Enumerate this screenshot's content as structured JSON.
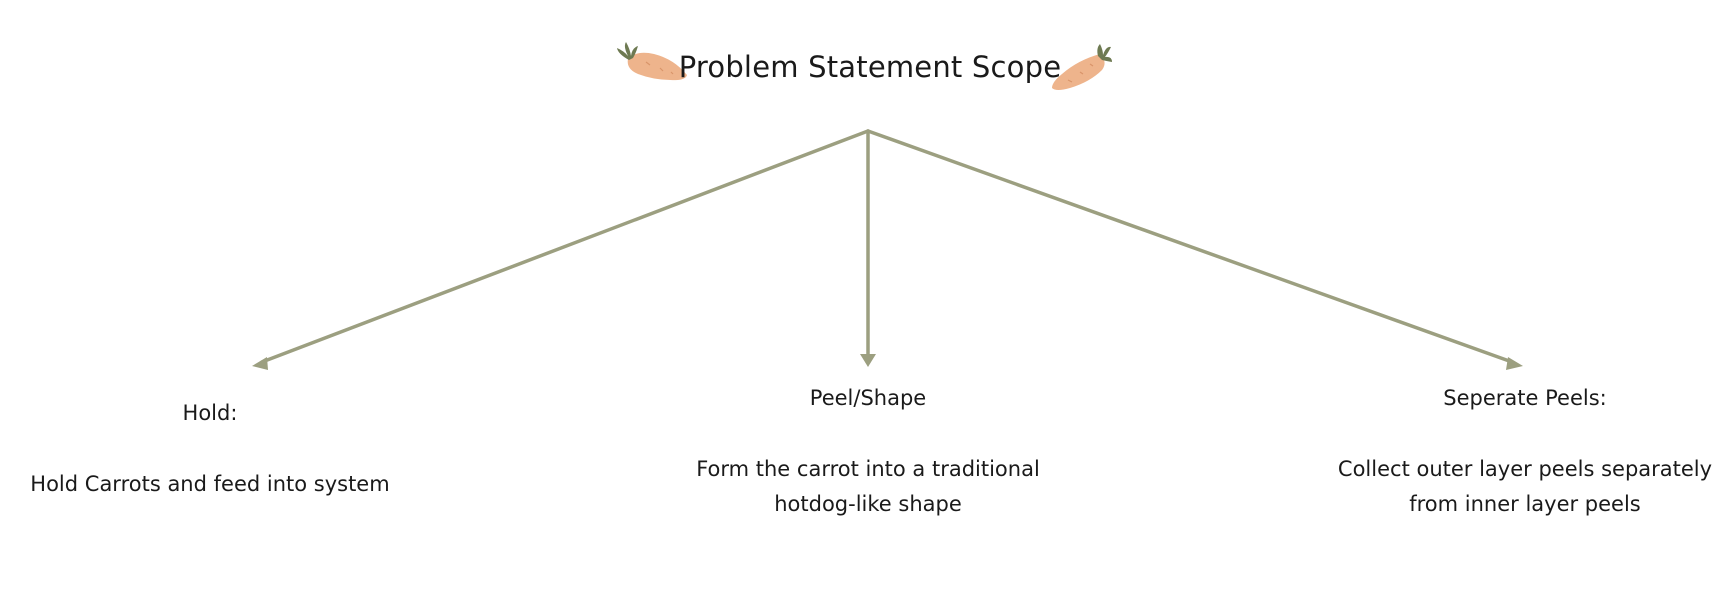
{
  "title": "Problem Statement Scope",
  "icons": {
    "decor_left": "carrot-icon",
    "decor_right": "carrot-icon"
  },
  "colors": {
    "connector": "#9c9f80",
    "carrot_body": "#eeb48c",
    "carrot_leaf": "#6e7a52"
  },
  "nodes": [
    {
      "label": "Hold:",
      "description": "Hold Carrots and feed into system"
    },
    {
      "label": "Peel/Shape",
      "description": "Form the carrot into a traditional hotdog-like shape"
    },
    {
      "label": "Seperate Peels:",
      "description": "Collect outer layer peels separately from inner layer peels"
    }
  ]
}
